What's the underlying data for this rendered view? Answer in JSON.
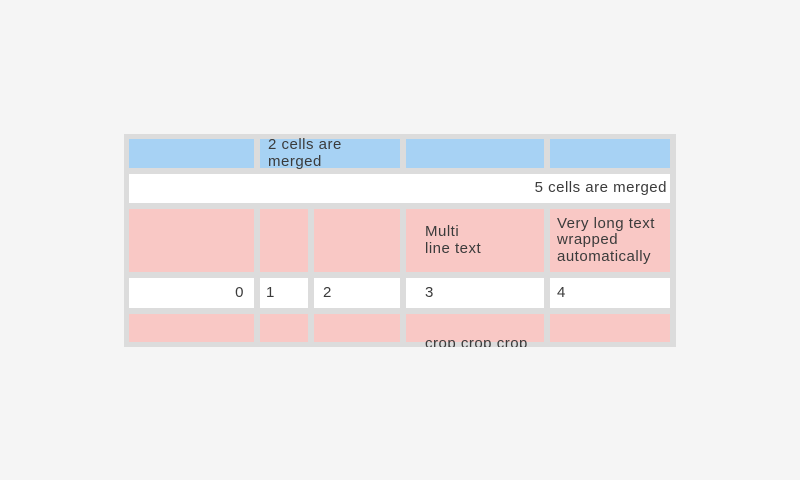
{
  "page": {
    "background": "#f5f5f5"
  },
  "colors": {
    "cell_blue": "#a7d2f4",
    "cell_pink": "#f9c8c5",
    "cell_white": "#ffffff",
    "table_border": "#dcdcdc",
    "text": "#3b3b3b"
  },
  "table": {
    "rows": [
      {
        "style": "blue",
        "cells": [
          {
            "text": ""
          },
          {
            "text": "2 cells are merged",
            "span": 2
          },
          {
            "text": ""
          },
          {
            "text": ""
          }
        ]
      },
      {
        "style": "white",
        "cells": [
          {
            "text": "5 cells are merged",
            "span": 5,
            "align": "right"
          }
        ]
      },
      {
        "style": "pink",
        "cells": [
          {
            "text": ""
          },
          {
            "text": ""
          },
          {
            "text": ""
          },
          {
            "text": "Multi\nline text"
          },
          {
            "text": "Very long text wrapped automatically"
          }
        ]
      },
      {
        "style": "white",
        "cells": [
          {
            "text": "0",
            "align": "right"
          },
          {
            "text": "1"
          },
          {
            "text": "2"
          },
          {
            "text": "3"
          },
          {
            "text": "4"
          }
        ]
      },
      {
        "style": "pink",
        "cells": [
          {
            "text": ""
          },
          {
            "text": ""
          },
          {
            "text": ""
          },
          {
            "text": "crop crop crop crop",
            "cropped": true
          },
          {
            "text": ""
          }
        ]
      }
    ]
  }
}
